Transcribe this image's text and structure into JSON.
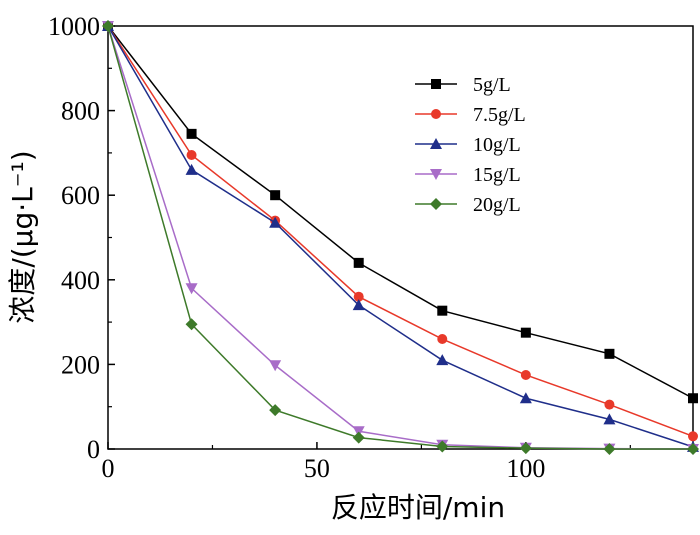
{
  "chart_data": {
    "type": "line",
    "xlabel": "反应时间/min",
    "ylabel": "浓度/(μg·L⁻¹)",
    "xlim": [
      0,
      140
    ],
    "ylim": [
      0,
      1000
    ],
    "x_ticks": [
      0,
      50,
      100
    ],
    "y_ticks": [
      0,
      200,
      400,
      600,
      800,
      1000
    ],
    "grid": false,
    "legend_position": "top-right",
    "x": [
      0,
      20,
      40,
      60,
      80,
      100,
      120,
      140
    ],
    "series": [
      {
        "name": "5g/L",
        "color": "#000000",
        "marker": "square",
        "values": [
          1000,
          745,
          600,
          440,
          327,
          275,
          225,
          120
        ]
      },
      {
        "name": "7.5g/L",
        "color": "#e8392a",
        "marker": "circle",
        "values": [
          1000,
          695,
          540,
          360,
          260,
          175,
          105,
          30
        ]
      },
      {
        "name": "10g/L",
        "color": "#1f2e8a",
        "marker": "triangle-up",
        "values": [
          1000,
          660,
          535,
          340,
          210,
          120,
          70,
          5
        ]
      },
      {
        "name": "15g/L",
        "color": "#a86cc8",
        "marker": "triangle-down",
        "values": [
          1000,
          380,
          198,
          42,
          10,
          3,
          1,
          0
        ]
      },
      {
        "name": "20g/L",
        "color": "#3e7a2a",
        "marker": "diamond",
        "values": [
          1000,
          295,
          92,
          27,
          6,
          2,
          0,
          0
        ]
      }
    ]
  }
}
